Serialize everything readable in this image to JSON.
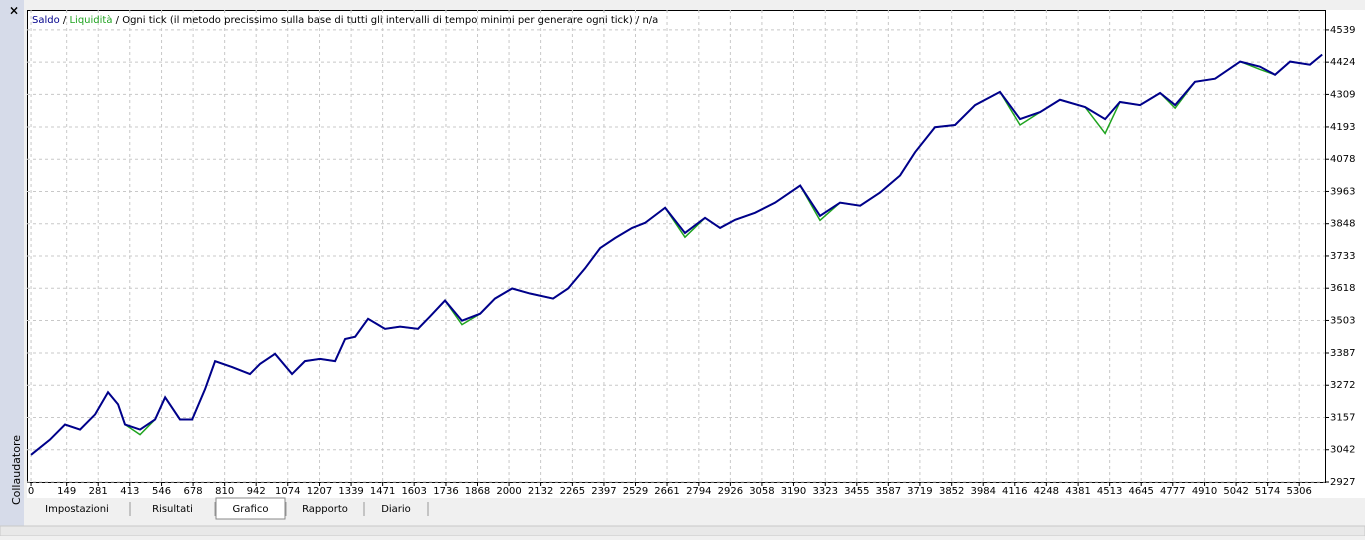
{
  "panel_title": "Collaudatore",
  "chart_data": {
    "type": "line",
    "subtitle": "/ Ogni tick (il metodo precissimo sulla base di tutti gli intervalli di tempo minimi per generare ogni tick) / n/a",
    "x": [
      0,
      79,
      142,
      205,
      268,
      322,
      364,
      393,
      456,
      519,
      561,
      623,
      674,
      728,
      770,
      841,
      916,
      958,
      1021,
      1092,
      1146,
      1209,
      1272,
      1314,
      1356,
      1410,
      1481,
      1544,
      1619,
      1669,
      1732,
      1803,
      1879,
      1941,
      2013,
      2088,
      2184,
      2247,
      2318,
      2381,
      2444,
      2515,
      2569,
      2653,
      2736,
      2820,
      2883,
      2946,
      3029,
      3113,
      3218,
      3301,
      3385,
      3469,
      3552,
      3636,
      3699,
      3782,
      3866,
      3950,
      4054,
      4138,
      4222,
      4305,
      4410,
      4494,
      4556,
      4640,
      4724,
      4787,
      4870,
      4954,
      5059,
      5142,
      5205,
      5268,
      5351,
      5402
    ],
    "series": [
      {
        "name": "Saldo",
        "color": "#00008b",
        "values": [
          3024,
          3078,
          3132,
          3114,
          3168,
          3247,
          3204,
          3132,
          3114,
          3150,
          3229,
          3150,
          3150,
          3258,
          3358,
          3337,
          3312,
          3348,
          3384,
          3312,
          3358,
          3366,
          3358,
          3437,
          3445,
          3509,
          3473,
          3481,
          3473,
          3517,
          3574,
          3502,
          3527,
          3581,
          3617,
          3599,
          3581,
          3617,
          3689,
          3761,
          3797,
          3833,
          3851,
          3905,
          3815,
          3869,
          3833,
          3862,
          3887,
          3923,
          3984,
          3876,
          3923,
          3912,
          3959,
          4020,
          4103,
          4192,
          4200,
          4271,
          4318,
          4221,
          4246,
          4290,
          4264,
          4221,
          4282,
          4271,
          4314,
          4271,
          4354,
          4365,
          4426,
          4408,
          4379,
          4426,
          4415,
          4451
        ]
      },
      {
        "name": "Liquidità",
        "color": "#1fa31f",
        "values": [
          3024,
          3078,
          3132,
          3114,
          3168,
          3247,
          3204,
          3132,
          3096,
          3150,
          3229,
          3150,
          3150,
          3258,
          3358,
          3337,
          3312,
          3348,
          3384,
          3312,
          3358,
          3366,
          3358,
          3437,
          3445,
          3509,
          3473,
          3481,
          3473,
          3517,
          3574,
          3488,
          3527,
          3581,
          3617,
          3599,
          3581,
          3617,
          3689,
          3761,
          3797,
          3833,
          3851,
          3905,
          3800,
          3869,
          3833,
          3862,
          3887,
          3923,
          3984,
          3860,
          3923,
          3912,
          3959,
          4020,
          4103,
          4192,
          4200,
          4271,
          4318,
          4200,
          4246,
          4290,
          4264,
          4170,
          4282,
          4271,
          4314,
          4260,
          4354,
          4365,
          4426,
          4398,
          4379,
          4426,
          4415,
          4451
        ]
      }
    ],
    "xlim": [
      -17,
      5414
    ],
    "ylim": [
      2927,
      4610
    ],
    "xticks": [
      0,
      149,
      281,
      413,
      546,
      678,
      810,
      942,
      1074,
      1207,
      1339,
      1471,
      1603,
      1736,
      1868,
      2000,
      2132,
      2265,
      2397,
      2529,
      2661,
      2794,
      2926,
      3058,
      3190,
      3323,
      3455,
      3587,
      3719,
      3852,
      3984,
      4116,
      4248,
      4381,
      4513,
      4645,
      4777,
      4910,
      5042,
      5174,
      5306
    ],
    "yticks": [
      2927,
      3042,
      3157,
      3272,
      3387,
      3503,
      3618,
      3733,
      3848,
      3963,
      4078,
      4193,
      4309,
      4424,
      4539
    ],
    "grid": true
  },
  "tabs": [
    {
      "label": "Impostazioni"
    },
    {
      "label": "Risultati"
    },
    {
      "label": "Grafico",
      "active": true
    },
    {
      "label": "Rapporto"
    },
    {
      "label": "Diario"
    }
  ]
}
